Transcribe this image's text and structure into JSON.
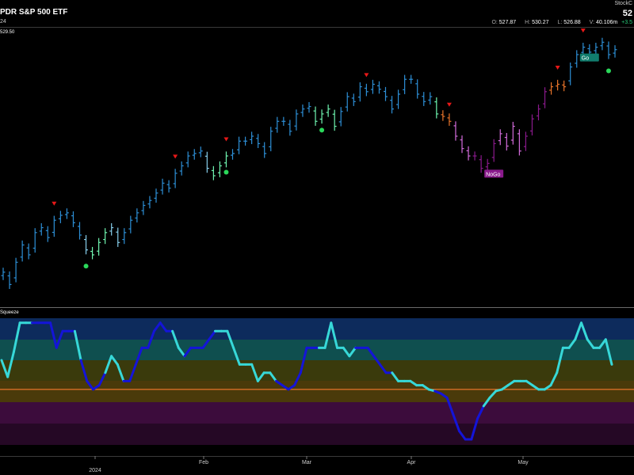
{
  "header": {
    "title": "PDR S&P 500 ETF",
    "subtitle": "24",
    "logo_text": "StockC",
    "last_price": "52",
    "ohlc": {
      "o_label": "O:",
      "o": "527.87",
      "h_label": "H:",
      "h": "530.27",
      "l_label": "L:",
      "l": "526.88",
      "v_label": "V:",
      "v": "40.106m",
      "change": "+3.5"
    }
  },
  "colors": {
    "strong_up": "#2d8fd6",
    "weak_up": "#87ceeb",
    "neutral_up": "#6ff5b0",
    "go_orange": "#e8742a",
    "nogo_pink": "#d46cdc",
    "strong_down": "#8a1a8c",
    "osc_line_a": "#37d8d8",
    "osc_line_b": "#1414d8",
    "zero_line": "#e8742a",
    "marker_up": "#2ad85a",
    "marker_down": "#e81818"
  },
  "chart_data": [
    {
      "type": "ohlc",
      "title": "PDR S&P 500 ETF",
      "price_tag": "529.50",
      "x_ticks": [
        "2024",
        "Feb",
        "Mar",
        "Apr",
        "May"
      ],
      "annotations": [
        "NoGo",
        "Go"
      ],
      "closes": [
        498,
        493,
        502,
        509,
        505,
        514,
        516,
        512,
        519,
        521,
        522,
        518,
        513,
        507,
        505,
        510,
        514,
        516,
        510,
        514,
        519,
        522,
        525,
        527,
        530,
        534,
        532,
        538,
        541,
        545,
        546,
        547,
        540,
        537,
        541,
        545,
        546,
        551,
        551,
        553,
        550,
        546,
        555,
        559,
        559,
        555,
        562,
        564,
        565,
        559,
        562,
        564,
        557,
        563,
        569,
        567,
        573,
        571,
        574,
        572,
        569,
        564,
        570,
        576,
        576,
        570,
        567,
        569,
        562,
        561,
        559,
        553,
        548,
        545,
        545,
        540,
        542,
        550,
        554,
        549,
        557,
        547,
        553,
        560,
        564,
        571,
        573,
        574,
        573,
        581,
        586,
        589,
        587,
        589,
        591,
        586,
        588
      ],
      "trend": [
        "su",
        "su",
        "su",
        "su",
        "su",
        "su",
        "su",
        "su",
        "su",
        "su",
        "su",
        "su",
        "su",
        "wu",
        "nu",
        "nu",
        "nu",
        "wu",
        "wu",
        "su",
        "su",
        "su",
        "su",
        "su",
        "su",
        "su",
        "su",
        "su",
        "su",
        "su",
        "su",
        "su",
        "wu",
        "nu",
        "nu",
        "nu",
        "su",
        "su",
        "su",
        "su",
        "su",
        "su",
        "su",
        "su",
        "su",
        "su",
        "su",
        "su",
        "su",
        "nu",
        "nu",
        "nu",
        "nu",
        "su",
        "su",
        "su",
        "su",
        "su",
        "su",
        "su",
        "su",
        "su",
        "su",
        "su",
        "su",
        "su",
        "su",
        "su",
        "nu",
        "go",
        "go",
        "nd",
        "nd",
        "nd",
        "sd",
        "sd",
        "sd",
        "sd",
        "nd",
        "nd",
        "nd",
        "nd",
        "sd",
        "sd",
        "sd",
        "sd",
        "go",
        "go",
        "go",
        "su",
        "su",
        "su",
        "su",
        "su",
        "su",
        "su",
        "su"
      ],
      "up_markers": [
        13,
        35,
        50,
        95
      ],
      "down_markers": [
        8,
        27,
        35,
        57,
        70,
        87,
        91
      ],
      "ylim": [
        488,
        594
      ]
    },
    {
      "type": "line",
      "title": "Squeeze",
      "values": [
        3.5,
        1.5,
        4.5,
        8,
        8,
        8,
        8,
        8,
        8,
        5,
        7,
        7,
        7,
        3.5,
        1,
        0,
        0.5,
        2,
        4,
        3,
        1,
        1,
        3,
        5,
        5,
        7,
        8,
        7,
        7,
        5,
        4,
        5,
        5,
        5,
        6,
        7,
        7,
        7,
        5,
        3,
        3,
        3,
        1,
        2,
        2,
        1,
        0.5,
        0,
        0.5,
        2,
        5,
        5,
        5,
        5,
        8,
        5,
        5,
        4,
        5,
        5,
        5,
        4,
        3,
        2,
        2,
        1,
        1,
        1,
        0.5,
        0.5,
        0,
        -0.2,
        -0.5,
        -1,
        -3,
        -5,
        -6,
        -6,
        -3.5,
        -2,
        -1,
        -0.2,
        0,
        0.5,
        1,
        1,
        1,
        0.5,
        0,
        0,
        0.5,
        2,
        5,
        5,
        6,
        8,
        6,
        5,
        5,
        6,
        3
      ],
      "segment_color": [
        "a",
        "a",
        "a",
        "a",
        "a",
        "b",
        "b",
        "b",
        "b",
        "b",
        "b",
        "b",
        "a",
        "b",
        "b",
        "b",
        "b",
        "a",
        "a",
        "a",
        "b",
        "b",
        "b",
        "b",
        "b",
        "b",
        "b",
        "b",
        "a",
        "a",
        "b",
        "b",
        "b",
        "b",
        "b",
        "a",
        "a",
        "a",
        "a",
        "a",
        "a",
        "a",
        "a",
        "a",
        "a",
        "b",
        "b",
        "b",
        "b",
        "b",
        "b",
        "b",
        "a",
        "a",
        "a",
        "a",
        "a",
        "a",
        "b",
        "b",
        "b",
        "b",
        "b",
        "b",
        "a",
        "a",
        "a",
        "a",
        "a",
        "a",
        "a",
        "b",
        "b",
        "b",
        "b",
        "b",
        "b",
        "b",
        "b",
        "a",
        "a",
        "a",
        "a",
        "a",
        "a",
        "a",
        "a",
        "a",
        "a",
        "a",
        "a",
        "a",
        "a",
        "a",
        "a",
        "a",
        "a",
        "a",
        "a",
        "a"
      ],
      "ylim": [
        -8,
        9.5
      ]
    }
  ]
}
